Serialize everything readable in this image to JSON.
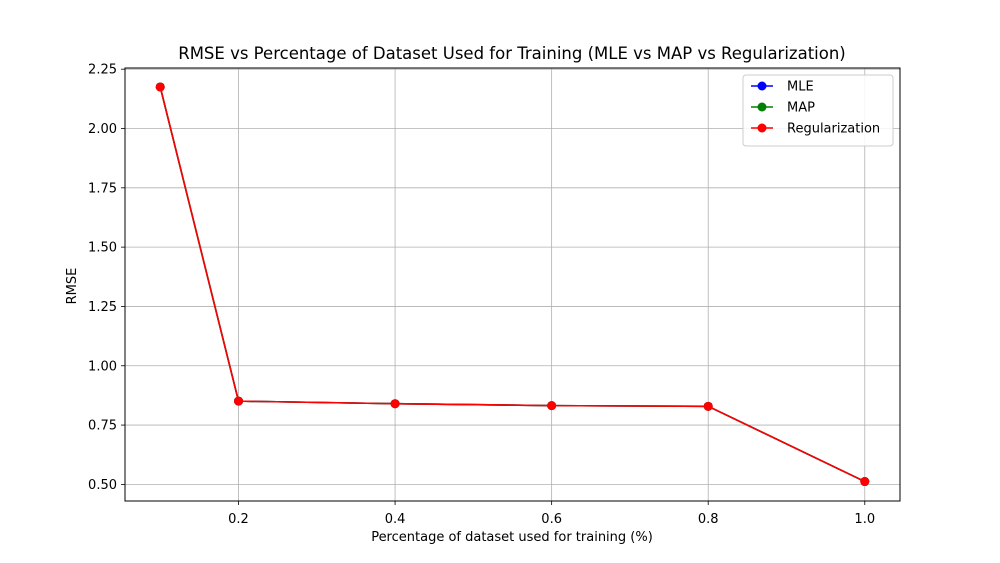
{
  "chart_data": {
    "type": "line",
    "title": "RMSE vs Percentage of Dataset Used for Training (MLE vs MAP vs Regularization)",
    "xlabel": "Percentage of dataset used for training (%)",
    "ylabel": "RMSE",
    "x": [
      0.1,
      0.2,
      0.4,
      0.6,
      0.8,
      1.0
    ],
    "xlim": [
      0.055,
      1.045
    ],
    "ylim": [
      0.43,
      2.255
    ],
    "xticks": [
      0.2,
      0.4,
      0.6,
      0.8,
      1.0
    ],
    "xtick_labels": [
      "0.2",
      "0.4",
      "0.6",
      "0.8",
      "1.0"
    ],
    "yticks": [
      0.5,
      0.75,
      1.0,
      1.25,
      1.5,
      1.75,
      2.0,
      2.25
    ],
    "ytick_labels": [
      "0.50",
      "0.75",
      "1.00",
      "1.25",
      "1.50",
      "1.75",
      "2.00",
      "2.25"
    ],
    "grid": true,
    "legend_position": "top-right",
    "series": [
      {
        "name": "MLE",
        "color": "#0000ff",
        "marker": "circle",
        "values": [
          2.175,
          0.851,
          0.84,
          0.832,
          0.829,
          0.512
        ]
      },
      {
        "name": "MAP",
        "color": "#008000",
        "marker": "circle",
        "values": [
          2.175,
          0.851,
          0.84,
          0.832,
          0.829,
          0.512
        ]
      },
      {
        "name": "Regularization",
        "color": "#ff0000",
        "marker": "circle",
        "values": [
          2.175,
          0.851,
          0.84,
          0.832,
          0.829,
          0.512
        ]
      }
    ]
  }
}
